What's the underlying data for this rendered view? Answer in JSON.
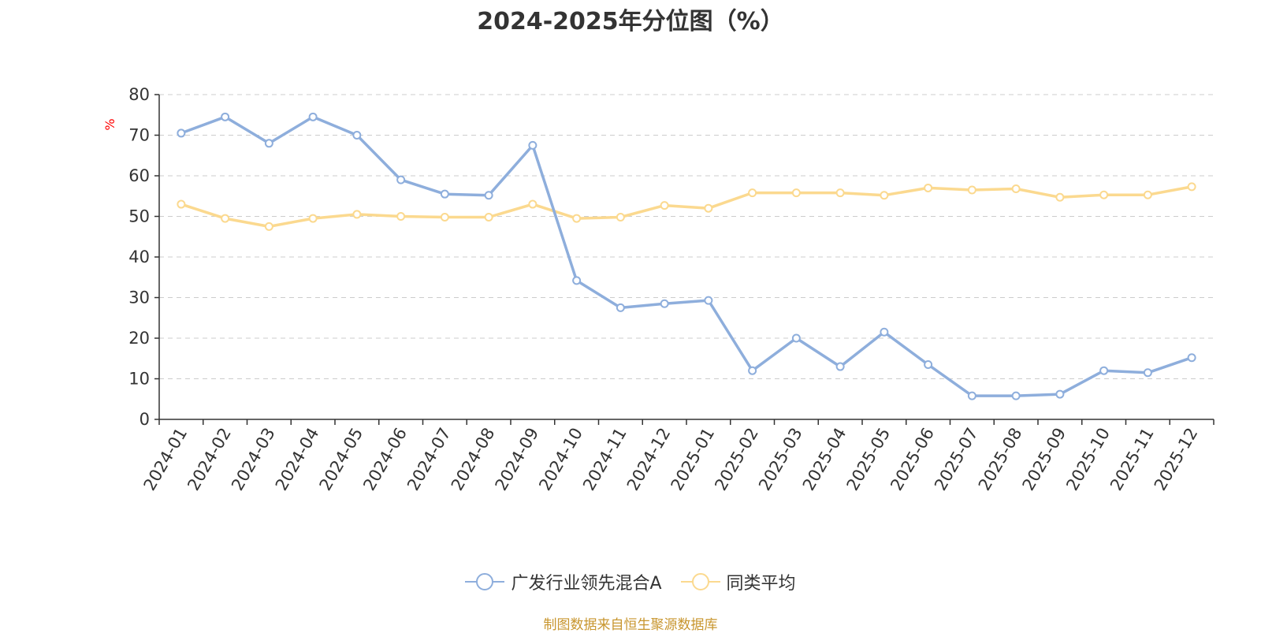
{
  "title": "2024-2025年分位图（%）",
  "source_note": "制图数据来自恒生聚源数据库",
  "colors": {
    "series_a": "#8eaedc",
    "series_b": "#fbd98f",
    "ylabel": "#ff0000",
    "source": "#c8962f"
  },
  "chart_data": {
    "type": "line",
    "title": "2024-2025年分位图（%）",
    "xlabel": "",
    "ylabel": "%",
    "ylim": [
      0,
      80
    ],
    "yticks": [
      0,
      10,
      20,
      30,
      40,
      50,
      60,
      70,
      80
    ],
    "grid": true,
    "legend_position": "bottom",
    "categories": [
      "2024-01",
      "2024-02",
      "2024-03",
      "2024-04",
      "2024-05",
      "2024-06",
      "2024-07",
      "2024-08",
      "2024-09",
      "2024-10",
      "2024-11",
      "2024-12",
      "2025-01",
      "2025-02",
      "2025-03",
      "2025-04",
      "2025-05",
      "2025-06",
      "2025-07",
      "2025-08",
      "2025-09",
      "2025-10",
      "2025-11",
      "2025-12"
    ],
    "series": [
      {
        "name": "广发行业领先混合A",
        "values": [
          70.5,
          74.5,
          68,
          74.5,
          70,
          59,
          55.5,
          55.2,
          67.5,
          34.2,
          27.5,
          28.5,
          29.3,
          12,
          20,
          13,
          21.5,
          13.5,
          5.8,
          5.8,
          6.2,
          12,
          11.5,
          15.2
        ]
      },
      {
        "name": "同类平均",
        "values": [
          53,
          49.5,
          47.5,
          49.5,
          50.5,
          50,
          49.8,
          49.8,
          53,
          49.5,
          49.8,
          52.7,
          52,
          55.8,
          55.8,
          55.8,
          55.2,
          57,
          56.5,
          56.8,
          54.7,
          55.3,
          55.3,
          57.3
        ]
      }
    ]
  }
}
